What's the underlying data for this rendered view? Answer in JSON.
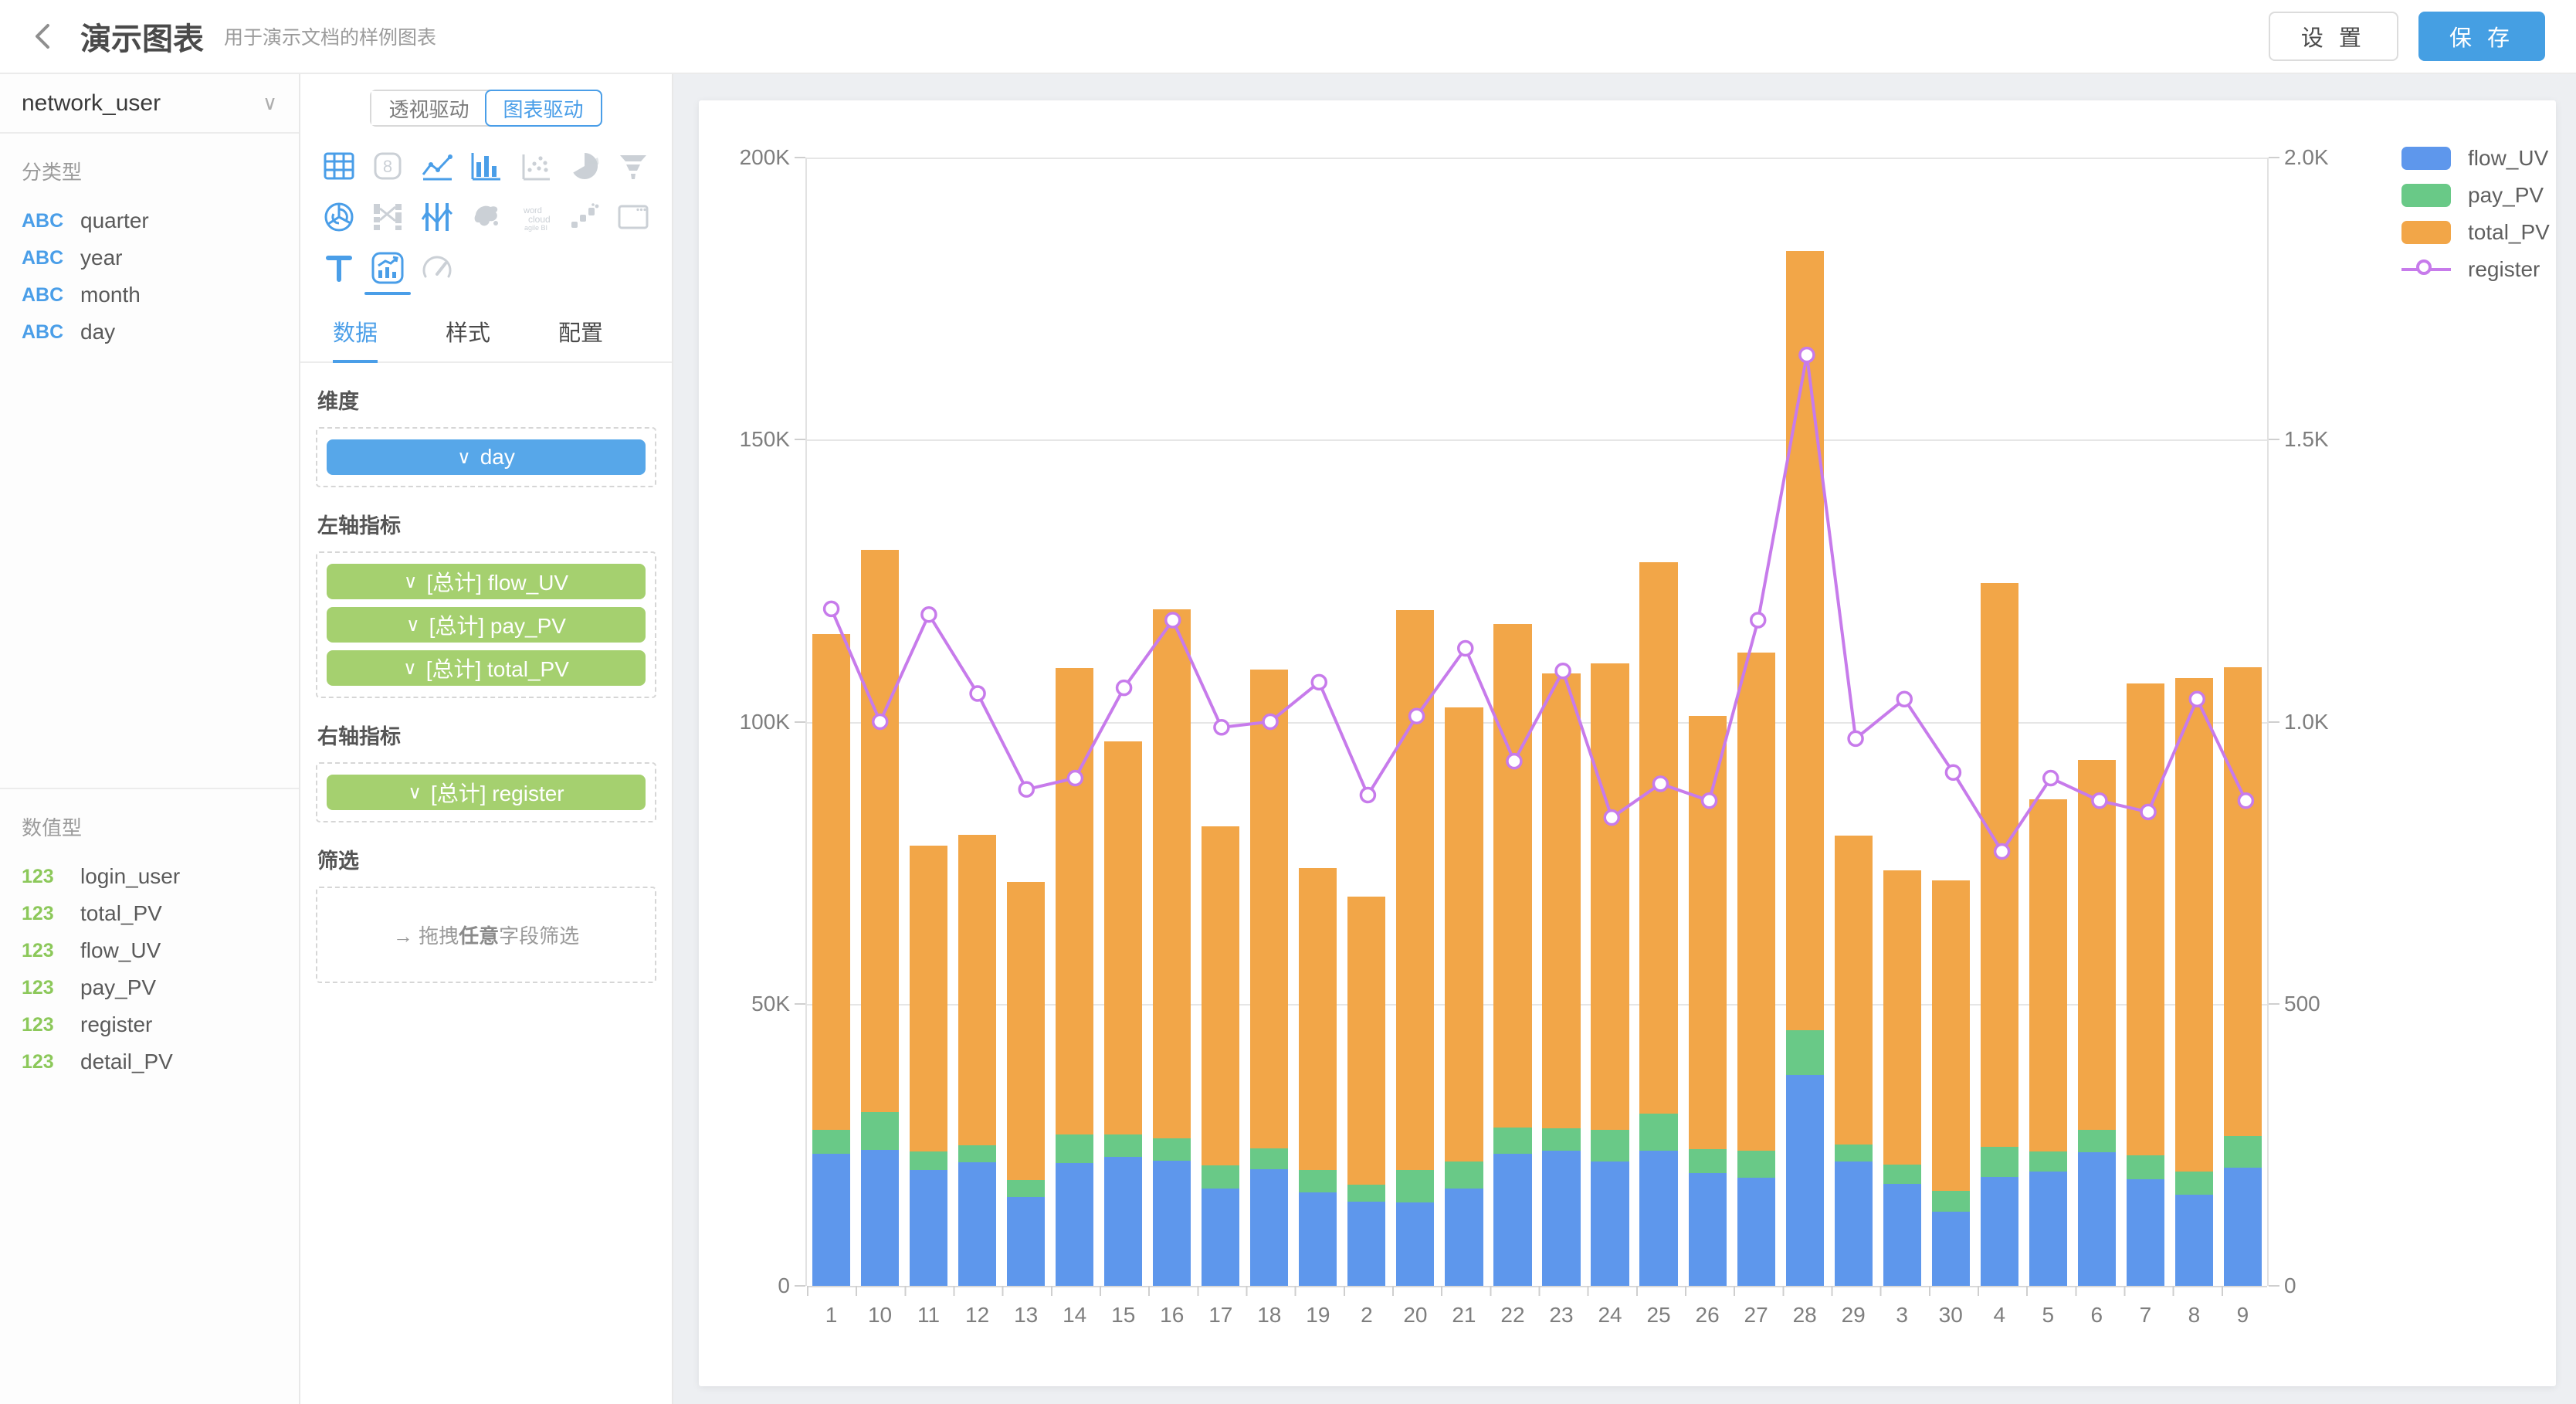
{
  "glyphs": {
    "chevron_down": "∨",
    "arrow_right": "→"
  },
  "header": {
    "title": "演示图表",
    "subtitle": "用于演示文档的样例图表",
    "settings_label": "设 置",
    "save_label": "保 存"
  },
  "sidebar": {
    "source": {
      "value": "network_user"
    },
    "sections": [
      {
        "label": "分类型",
        "badge": "ABC",
        "fields": [
          "quarter",
          "year",
          "month",
          "day"
        ]
      },
      {
        "label": "数值型",
        "badge": "123",
        "fields": [
          "login_user",
          "total_PV",
          "flow_UV",
          "pay_PV",
          "register",
          "detail_PV"
        ]
      }
    ]
  },
  "panel": {
    "toggle": {
      "left": "透视驱动",
      "right": "图表驱动"
    },
    "tabs": {
      "data": "数据",
      "style": "样式",
      "config": "配置"
    },
    "dimension_label": "维度",
    "dimension_chip": "day",
    "left_axis_label": "左轴指标",
    "left_chips": [
      "[总计] flow_UV",
      "[总计] pay_PV",
      "[总计] total_PV"
    ],
    "right_axis_label": "右轴指标",
    "right_chips": [
      "[总计] register"
    ],
    "filter_label": "筛选",
    "filter_prefix": "拖拽",
    "filter_bold": "任意",
    "filter_suffix": "字段筛选"
  },
  "chart_data": {
    "type": "bar",
    "subtype": "dual-axis stacked bar + line",
    "categories": [
      "1",
      "10",
      "11",
      "12",
      "13",
      "14",
      "15",
      "16",
      "17",
      "18",
      "19",
      "2",
      "20",
      "21",
      "22",
      "23",
      "24",
      "25",
      "26",
      "27",
      "28",
      "29",
      "3",
      "30",
      "4",
      "5",
      "6",
      "7",
      "8",
      "9"
    ],
    "series": [
      {
        "name": "flow_UV",
        "type": "bar",
        "stack": true,
        "axis": "left",
        "color": "#5E97EC",
        "values": [
          23400,
          24100,
          20600,
          21900,
          15800,
          21800,
          22900,
          22200,
          17300,
          20700,
          16600,
          14900,
          14800,
          17300,
          23400,
          24000,
          22000,
          24000,
          20000,
          19100,
          37400,
          22000,
          18100,
          13200,
          19300,
          20200,
          23700,
          18900,
          16200,
          20900
        ]
      },
      {
        "name": "pay_PV",
        "type": "bar",
        "stack": true,
        "axis": "left",
        "color": "#69C987",
        "values": [
          4300,
          6700,
          3200,
          3000,
          2900,
          5100,
          3900,
          4000,
          4000,
          3700,
          3900,
          3000,
          5700,
          4700,
          4700,
          3900,
          5700,
          6500,
          4300,
          4800,
          7900,
          3000,
          3400,
          3700,
          5400,
          3600,
          4000,
          4200,
          4000,
          5700
        ]
      },
      {
        "name": "total_PV",
        "type": "bar",
        "stack": true,
        "axis": "left",
        "color": "#F2A648",
        "values": [
          87900,
          99600,
          54200,
          55100,
          52900,
          82600,
          69700,
          93700,
          60200,
          84900,
          53500,
          51100,
          99300,
          80500,
          89200,
          80700,
          82600,
          97800,
          76700,
          88400,
          138100,
          54800,
          52100,
          55000,
          99900,
          62400,
          65500,
          83700,
          87500,
          83100
        ]
      },
      {
        "name": "register",
        "type": "line",
        "axis": "right",
        "color": "#C77BEB",
        "values": [
          1200,
          1000,
          1190,
          1050,
          880,
          900,
          1060,
          1180,
          990,
          1000,
          1070,
          870,
          1010,
          1130,
          930,
          1090,
          830,
          890,
          860,
          1180,
          1650,
          970,
          1040,
          910,
          770,
          900,
          860,
          840,
          1040,
          860
        ]
      }
    ],
    "left_axis": {
      "max": 200000,
      "ticks": [
        "0",
        "50K",
        "100K",
        "150K",
        "200K"
      ]
    },
    "right_axis": {
      "max": 2000,
      "ticks": [
        "0",
        "500",
        "1.0K",
        "1.5K",
        "2.0K"
      ]
    },
    "grid": true,
    "legend_position": "right"
  }
}
